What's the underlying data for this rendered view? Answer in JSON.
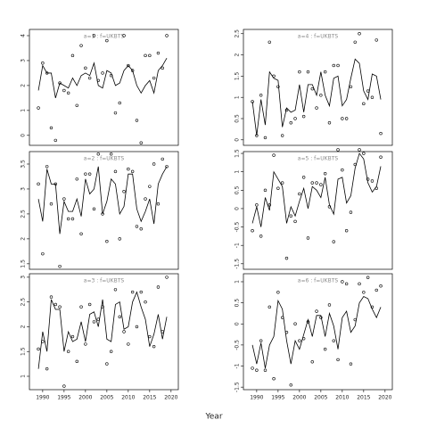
{
  "xlabel": "Year",
  "chart_data": [
    {
      "type": "scatter",
      "title": "a=1 : f=UKBTS",
      "color": "#000000",
      "x": [
        1989,
        1990,
        1991,
        1992,
        1993,
        1994,
        1995,
        1996,
        1997,
        1998,
        1999,
        2000,
        2001,
        2002,
        2003,
        2004,
        2005,
        2006,
        2007,
        2008,
        2009,
        2010,
        2011,
        2012,
        2013,
        2014,
        2015,
        2016,
        2017,
        2018,
        2019
      ],
      "series": [
        {
          "style": "points",
          "values": [
            1.1,
            2.9,
            2.5,
            0.3,
            -0.2,
            2.1,
            1.8,
            1.7,
            3.2,
            1.2,
            3.6,
            2.7,
            2.3,
            4.0,
            2.2,
            2.5,
            3.8,
            2.4,
            0.9,
            1.3,
            4.0,
            2.8,
            2.6,
            0.6,
            -0.3,
            3.2,
            3.2,
            2.3,
            3.3,
            2.7,
            4.0
          ]
        },
        {
          "style": "line",
          "values": [
            1.8,
            2.8,
            2.5,
            2.5,
            1.5,
            2.1,
            2.0,
            1.9,
            2.3,
            2.0,
            2.4,
            2.5,
            2.4,
            2.9,
            2.0,
            1.9,
            2.6,
            2.5,
            2.0,
            2.1,
            2.6,
            2.8,
            2.6,
            2.0,
            1.7,
            2.0,
            2.2,
            1.7,
            2.6,
            2.8,
            3.1
          ]
        }
      ],
      "xlim": [
        1986.9,
        2021.7
      ],
      "ylim": [
        -0.4,
        4.25
      ],
      "yticks": [
        0,
        1,
        2,
        3,
        4
      ]
    },
    {
      "type": "scatter",
      "title": "a=4 : f=UKBTS",
      "color": "#000000",
      "x": [
        1989,
        1990,
        1991,
        1992,
        1993,
        1994,
        1995,
        1996,
        1997,
        1998,
        1999,
        2000,
        2001,
        2002,
        2003,
        2004,
        2005,
        2006,
        2007,
        2008,
        2009,
        2010,
        2011,
        2012,
        2013,
        2014,
        2015,
        2016,
        2017,
        2018,
        2019
      ],
      "series": [
        {
          "style": "points",
          "values": [
            0.9,
            0.1,
            1.05,
            0.05,
            2.3,
            1.5,
            1.25,
            0.1,
            0.7,
            0.4,
            0.5,
            1.6,
            0.55,
            1.6,
            1.2,
            0.75,
            1.05,
            1.6,
            0.4,
            1.75,
            1.75,
            0.5,
            0.5,
            1.25,
            2.3,
            2.5,
            0.85,
            1.15,
            1.0,
            2.35,
            0.15
          ]
        },
        {
          "style": "line",
          "values": [
            0.9,
            0.1,
            0.95,
            0.35,
            1.6,
            1.45,
            1.4,
            0.3,
            0.75,
            0.65,
            0.7,
            1.3,
            0.65,
            1.3,
            1.3,
            1.05,
            1.6,
            1.05,
            0.8,
            1.45,
            1.5,
            0.8,
            0.95,
            1.45,
            1.9,
            1.8,
            1.15,
            0.95,
            1.55,
            1.5,
            0.95
          ]
        }
      ],
      "xlim": [
        1986.9,
        2021.7
      ],
      "ylim": [
        -0.13,
        2.6
      ],
      "yticks": [
        0,
        0.5,
        1,
        1.5,
        2,
        2.5
      ]
    },
    {
      "type": "scatter",
      "title": "a=2 : f=UKBTS",
      "color": "#000000",
      "x": [
        1989,
        1990,
        1991,
        1992,
        1993,
        1994,
        1995,
        1996,
        1997,
        1998,
        1999,
        2000,
        2001,
        2002,
        2003,
        2004,
        2005,
        2006,
        2007,
        2008,
        2009,
        2010,
        2011,
        2012,
        2013,
        2014,
        2015,
        2016,
        2017,
        2018,
        2019
      ],
      "series": [
        {
          "style": "points",
          "values": [
            3.1,
            1.7,
            3.45,
            2.7,
            3.1,
            1.45,
            2.8,
            2.4,
            2.4,
            3.2,
            2.1,
            3.3,
            3.3,
            2.6,
            3.7,
            2.5,
            1.95,
            3.7,
            3.35,
            2.0,
            2.95,
            3.4,
            3.35,
            2.25,
            2.2,
            2.8,
            3.05,
            3.5,
            2.7,
            3.6,
            3.45
          ]
        },
        {
          "style": "line",
          "values": [
            2.8,
            2.35,
            3.4,
            3.1,
            3.1,
            2.1,
            2.75,
            2.55,
            2.55,
            2.8,
            2.45,
            3.2,
            2.9,
            3.0,
            3.45,
            2.5,
            2.75,
            3.2,
            3.1,
            2.5,
            2.65,
            3.3,
            3.3,
            2.6,
            2.35,
            2.55,
            2.8,
            2.3,
            3.1,
            3.3,
            3.45
          ]
        }
      ],
      "xlim": [
        1986.9,
        2021.7
      ],
      "ylim": [
        1.39,
        3.75
      ],
      "yticks": [
        1.5,
        2,
        2.5,
        3,
        3.5
      ]
    },
    {
      "type": "scatter",
      "title": "a=5 : f=UKBTS",
      "color": "#000000",
      "x": [
        1989,
        1990,
        1991,
        1992,
        1993,
        1994,
        1995,
        1996,
        1997,
        1998,
        1999,
        2000,
        2001,
        2002,
        2003,
        2004,
        2005,
        2006,
        2007,
        2008,
        2009,
        2010,
        2011,
        2012,
        2013,
        2014,
        2015,
        2016,
        2017,
        2018,
        2019
      ],
      "series": [
        {
          "style": "points",
          "values": [
            -0.6,
            0.1,
            -0.75,
            0.5,
            0.1,
            1.45,
            0.55,
            0.7,
            -1.35,
            -0.2,
            -0.35,
            0.4,
            0.85,
            -0.8,
            0.7,
            0.7,
            0.65,
            0.95,
            0.05,
            -0.9,
            1.6,
            1.05,
            -0.6,
            -0.1,
            1.2,
            1.6,
            1.5,
            0.8,
            0.75,
            0.55,
            1.4
          ]
        },
        {
          "style": "line",
          "values": [
            -0.4,
            0.05,
            -0.5,
            0.3,
            -0.05,
            1.0,
            0.8,
            0.6,
            -0.4,
            0.05,
            -0.2,
            0.2,
            0.55,
            0.0,
            0.6,
            0.5,
            0.3,
            0.85,
            0.1,
            -0.15,
            0.8,
            0.85,
            0.15,
            0.35,
            1.1,
            1.5,
            1.35,
            0.7,
            0.45,
            0.6,
            1.15
          ]
        }
      ],
      "xlim": [
        1986.9,
        2021.7
      ],
      "ylim": [
        -1.65,
        1.55
      ],
      "yticks": [
        -1.5,
        -1,
        -0.5,
        0,
        0.5,
        1,
        1.5
      ]
    },
    {
      "type": "scatter",
      "title": "a=3 : f=UKBTS",
      "color": "#000000",
      "x": [
        1989,
        1990,
        1991,
        1992,
        1993,
        1994,
        1995,
        1996,
        1997,
        1998,
        1999,
        2000,
        2001,
        2002,
        2003,
        2004,
        2005,
        2006,
        2007,
        2008,
        2009,
        2010,
        2011,
        2012,
        2013,
        2014,
        2015,
        2016,
        2017,
        2018,
        2019
      ],
      "series": [
        {
          "style": "points",
          "values": [
            1.55,
            1.7,
            1.15,
            2.6,
            2.45,
            2.4,
            0.8,
            1.5,
            1.8,
            1.3,
            2.4,
            1.65,
            2.45,
            2.1,
            2.15,
            2.4,
            1.25,
            1.5,
            2.75,
            2.2,
            1.9,
            1.65,
            2.7,
            2.0,
            2.7,
            2.5,
            1.8,
            1.6,
            2.8,
            1.9,
            3.0
          ]
        },
        {
          "style": "line",
          "values": [
            1.15,
            1.9,
            1.5,
            2.55,
            2.35,
            2.35,
            1.5,
            1.9,
            1.7,
            1.75,
            2.1,
            1.7,
            2.25,
            2.3,
            2.0,
            2.55,
            1.75,
            1.7,
            2.45,
            2.5,
            1.95,
            2.0,
            2.5,
            2.7,
            2.4,
            2.15,
            1.6,
            1.85,
            2.25,
            1.75,
            2.2
          ]
        }
      ],
      "xlim": [
        1986.9,
        2021.7
      ],
      "ylim": [
        0.73,
        3.07
      ],
      "yticks": [
        1,
        1.5,
        2,
        2.5,
        3
      ],
      "xticks": [
        1990,
        1995,
        2000,
        2005,
        2010,
        2015,
        2020
      ]
    },
    {
      "type": "scatter",
      "title": "a=6 : f=UKBTS",
      "color": "#000000",
      "x": [
        1989,
        1990,
        1991,
        1992,
        1993,
        1994,
        1995,
        1996,
        1997,
        1998,
        1999,
        2000,
        2001,
        2002,
        2003,
        2004,
        2005,
        2006,
        2007,
        2008,
        2009,
        2010,
        2011,
        2012,
        2013,
        2014,
        2015,
        2016,
        2017,
        2018,
        2019
      ],
      "series": [
        {
          "style": "points",
          "values": [
            -1.05,
            -1.1,
            -0.4,
            -1.1,
            0.4,
            -1.3,
            0.75,
            0.15,
            -0.2,
            -1.45,
            0.0,
            -0.4,
            -0.35,
            0.05,
            -0.9,
            0.3,
            0.15,
            -0.6,
            0.45,
            -0.4,
            -0.85,
            1.0,
            0.95,
            -0.95,
            0.1,
            0.95,
            0.75,
            1.1,
            0.4,
            0.8,
            0.9
          ]
        },
        {
          "style": "line",
          "values": [
            -0.5,
            -0.95,
            -0.45,
            -1.05,
            -0.5,
            -0.3,
            0.55,
            0.35,
            -0.4,
            -0.95,
            -0.4,
            -0.6,
            -0.25,
            0.1,
            -0.3,
            0.2,
            0.2,
            -0.3,
            0.25,
            -0.05,
            -0.6,
            0.15,
            0.3,
            -0.2,
            -0.05,
            0.5,
            0.65,
            0.6,
            0.35,
            0.15,
            0.4
          ]
        }
      ],
      "xlim": [
        1986.9,
        2021.7
      ],
      "ylim": [
        -1.56,
        1.19
      ],
      "yticks": [
        -1.5,
        -1,
        -0.5,
        0,
        0.5,
        1
      ],
      "xticks": [
        1990,
        1995,
        2000,
        2005,
        2010,
        2015,
        2020
      ]
    }
  ]
}
